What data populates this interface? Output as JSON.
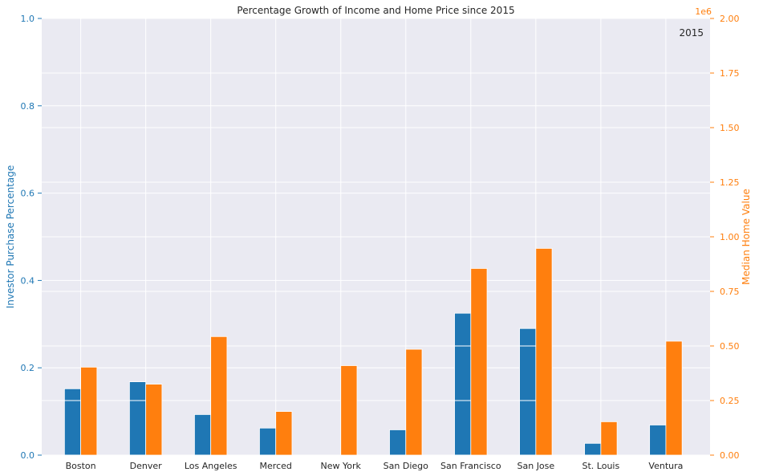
{
  "chart_data": {
    "type": "bar",
    "title": "Percentage Growth of Income and Home Price since 2015",
    "frame_label": "2015",
    "categories": [
      "Boston",
      "Denver",
      "Los Angeles",
      "Merced",
      "New York",
      "San Diego",
      "San Francisco",
      "San Jose",
      "St. Louis",
      "Ventura"
    ],
    "series": [
      {
        "name": "Investor Purchase Percentage",
        "axis": "left",
        "color": "#1f77b4",
        "values": [
          0.152,
          0.168,
          0.093,
          0.062,
          0.0,
          0.058,
          0.325,
          0.29,
          0.027,
          0.069
        ]
      },
      {
        "name": "Median Home Value",
        "axis": "right",
        "color": "#ff7f0e",
        "values": [
          403000,
          325000,
          543000,
          200000,
          410000,
          485000,
          855000,
          947000,
          153000,
          522000
        ]
      }
    ],
    "left_axis": {
      "label": "Investor Purchase Percentage",
      "ylim": [
        0,
        1.0
      ],
      "ticks": [
        "0.0",
        "0.2",
        "0.4",
        "0.6",
        "0.8",
        "1.0"
      ]
    },
    "right_axis": {
      "label": "Median Home Value",
      "ylim": [
        0,
        2000000
      ],
      "offset_label": "1e6",
      "ticks": [
        "0.00",
        "0.25",
        "0.50",
        "0.75",
        "1.00",
        "1.25",
        "1.50",
        "1.75",
        "2.00"
      ]
    },
    "grid": true,
    "background": "#eaeaf2",
    "grid_color": "#ffffff"
  }
}
